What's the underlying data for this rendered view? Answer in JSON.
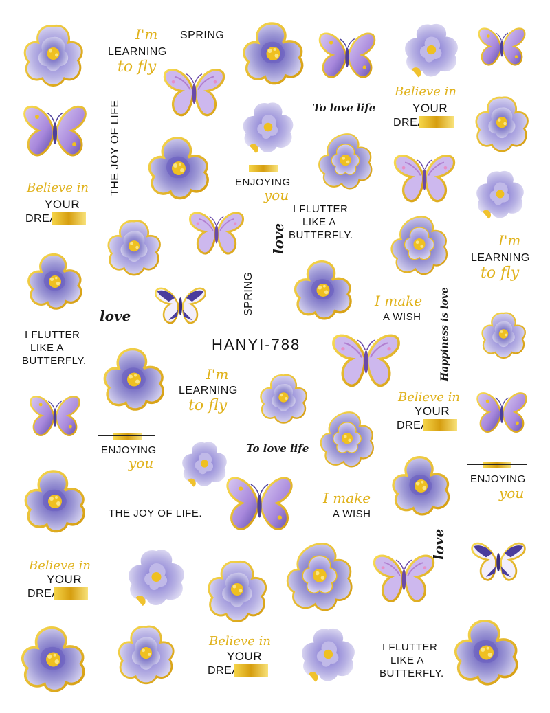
{
  "code": "HANYI-788",
  "stickers": {
    "learning_1": {
      "script": "I'm",
      "main": "LEARNING",
      "script2": "to fly"
    },
    "learning_2": {
      "script": "I'm",
      "main": "LEARNING",
      "script2": "to fly"
    },
    "learning_3": {
      "script": "I'm",
      "main": "LEARNING",
      "script2": "to fly"
    },
    "spring_1": "SPRING",
    "spring_2": "SPRING",
    "joy_vertical": "THE JOY OF LIFE",
    "joy_horizontal": "THE JOY OF LIFE.",
    "to_love_life_1": "To love life",
    "to_love_life_2": "To love life",
    "believe_1": {
      "script": "Believe in",
      "main": "YOUR",
      "main2": "DREA"
    },
    "believe_2": {
      "script": "Believe in",
      "main": "YOUR",
      "main2": "DREA"
    },
    "believe_3": {
      "script": "Believe in",
      "main": "YOUR",
      "main2": "DREA"
    },
    "believe_4": {
      "script": "Believe in",
      "main": "YOUR",
      "main2": "DREA"
    },
    "believe_5": {
      "script": "Believe in",
      "main": "YOUR",
      "main2": "DREA"
    },
    "enjoying_1": {
      "main": "ENJOYING",
      "script": "you"
    },
    "enjoying_2": {
      "main": "ENJOYING",
      "script": "you"
    },
    "enjoying_3": {
      "main": "ENJOYING",
      "script": "you"
    },
    "flutter_1": [
      "I FLUTTER",
      "LIKE A",
      "BUTTERFLY."
    ],
    "flutter_2": [
      "I FLUTTER",
      "LIKE A",
      "BUTTERFLY."
    ],
    "flutter_3": [
      "I FLUTTER",
      "LIKE A",
      "BUTTERFLY."
    ],
    "love_1": "love",
    "love_2": "love",
    "love_3": "love",
    "wish_1": {
      "script": "I make",
      "main": "A WISH"
    },
    "wish_2": {
      "script": "I make",
      "main": "A WISH"
    },
    "happiness": "Happiness is love"
  },
  "colors": {
    "petal": "#9f9ad6",
    "petal_dark": "#6a5fc0",
    "petal_light": "#dcd8f2",
    "gold": "#e8b617",
    "butterfly": "#b59be0",
    "butterfly_dark": "#5a4aa8"
  }
}
